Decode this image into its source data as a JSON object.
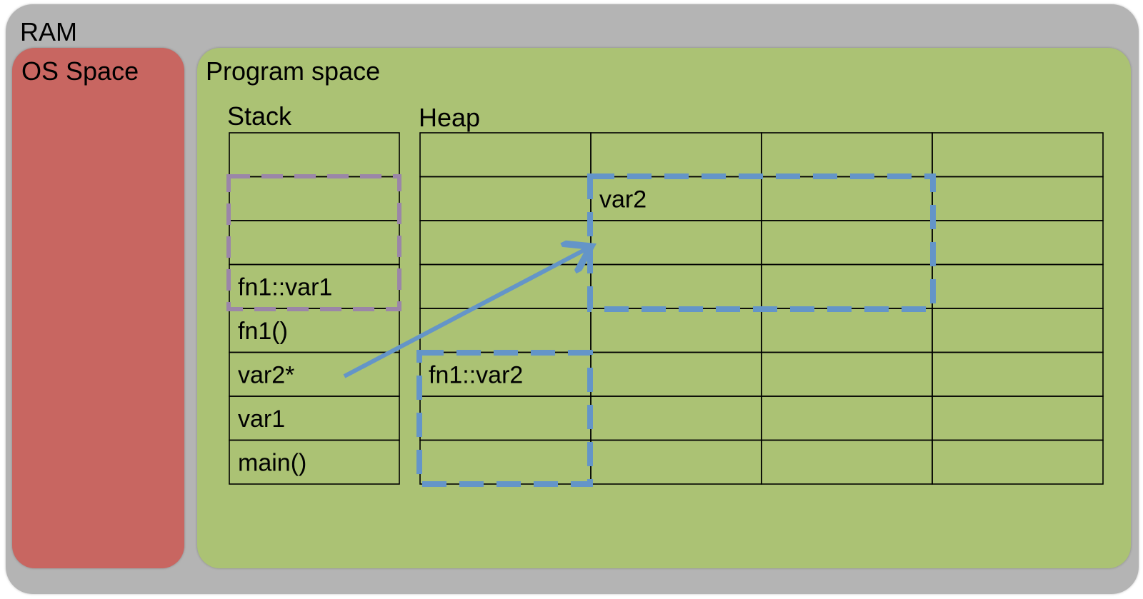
{
  "ram": {
    "label": "RAM"
  },
  "os_space": {
    "label": "OS Space"
  },
  "program_space": {
    "label": "Program space",
    "stack": {
      "label": "Stack",
      "cells": [
        "",
        "",
        "",
        "fn1::var1",
        "fn1()",
        "var2*",
        "var1",
        "main()"
      ]
    },
    "heap": {
      "label": "Heap",
      "rows": 8,
      "cols": 4,
      "labels": [
        {
          "text": "var2",
          "row": 1,
          "col": 1
        },
        {
          "text": "fn1::var2",
          "row": 5,
          "col": 0
        }
      ]
    }
  },
  "colors": {
    "ram": "#b4b4b4",
    "os_space": "#c86661",
    "program_space": "#abc274",
    "stack_frame_dash": "#9b86a8",
    "heap_block_dash": "#6495c8",
    "pointer_arrow": "#6495c8",
    "grid_line": "#000000"
  }
}
